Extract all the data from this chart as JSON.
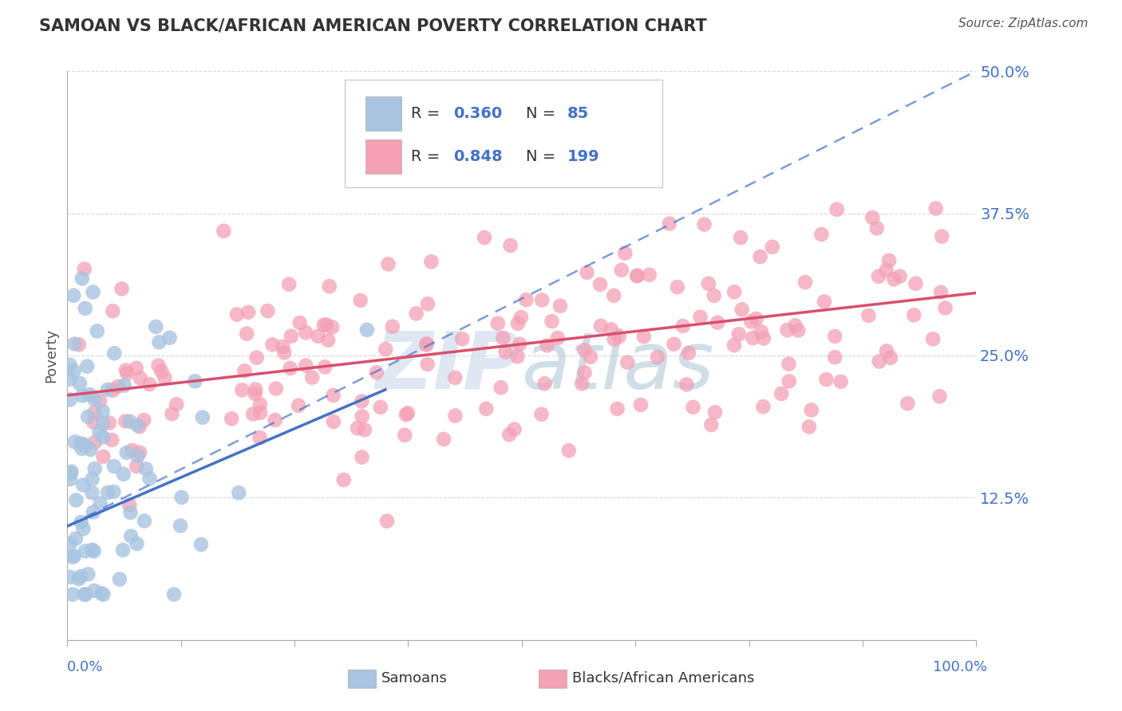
{
  "title": "SAMOAN VS BLACK/AFRICAN AMERICAN POVERTY CORRELATION CHART",
  "source": "Source: ZipAtlas.com",
  "ylabel": "Poverty",
  "xlim": [
    0,
    1.0
  ],
  "ylim": [
    0,
    0.5
  ],
  "ytick_vals": [
    0.0,
    0.125,
    0.25,
    0.375,
    0.5
  ],
  "ytick_labels": [
    "",
    "12.5%",
    "25.0%",
    "37.5%",
    "50.0%"
  ],
  "xtick_vals": [
    0.0,
    0.125,
    0.25,
    0.375,
    0.5,
    0.625,
    0.75,
    0.875,
    1.0
  ],
  "samoan_R": 0.36,
  "samoan_N": 85,
  "black_R": 0.848,
  "black_N": 199,
  "samoan_color": "#a8c4e0",
  "black_color": "#f4a0b5",
  "samoan_line_color": "#4472c4",
  "black_line_color": "#d94f6e",
  "background_color": "#ffffff",
  "grid_color": "#cccccc",
  "title_color": "#333333",
  "axis_label_color": "#4472c4",
  "legend_text_color": "#4472c4",
  "watermark_color": "#c8d8ea",
  "samoan_line_solid": [
    [
      0.0,
      0.1
    ],
    [
      0.35,
      0.22
    ]
  ],
  "samoan_line_dashed": [
    [
      0.0,
      0.1
    ],
    [
      1.0,
      0.5
    ]
  ],
  "black_line": [
    [
      0.0,
      0.215
    ],
    [
      1.0,
      0.305
    ]
  ]
}
